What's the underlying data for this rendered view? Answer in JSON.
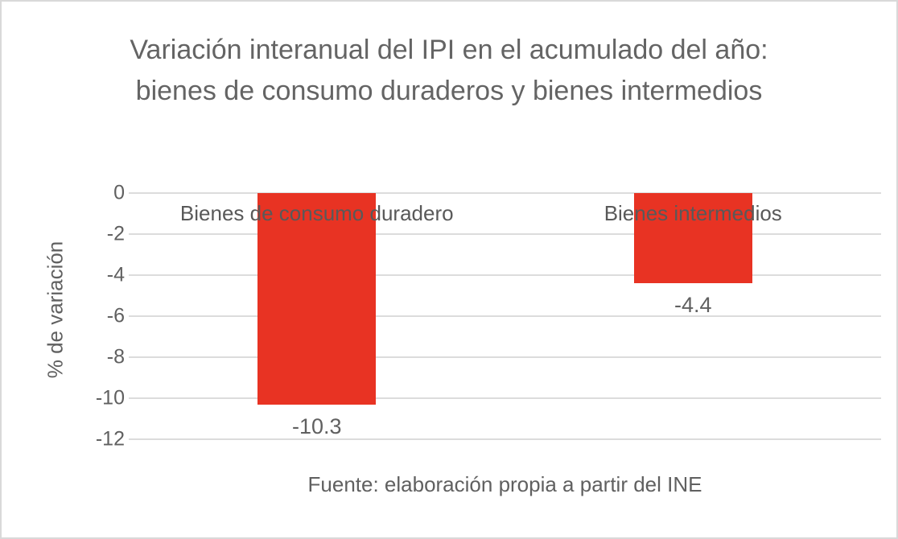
{
  "colors": {
    "bar_red": "#e83323",
    "grid_gray": "#dcdcdc",
    "border_gray": "#d9d9d9",
    "title_gray": "#646464",
    "text_gray": "#606060"
  },
  "chart_data": {
    "type": "bar",
    "title": "Variación interanual del IPI en el acumulado del año: bienes de consumo duraderos y bienes intermedios",
    "categories": [
      "Bienes de consumo duradero",
      "Bienes intermedios"
    ],
    "values": [
      -10.3,
      -4.4
    ],
    "data_labels": [
      "-10.3",
      "-4.4"
    ],
    "ylabel": "% de variación",
    "xlabel": "",
    "ylim": [
      -12,
      0
    ],
    "yticks": [
      0,
      -2,
      -4,
      -6,
      -8,
      -10,
      -12
    ],
    "grid": "horizontal-only",
    "legend": "none",
    "source_note": "Fuente: elaboración propia a partir del INE"
  }
}
